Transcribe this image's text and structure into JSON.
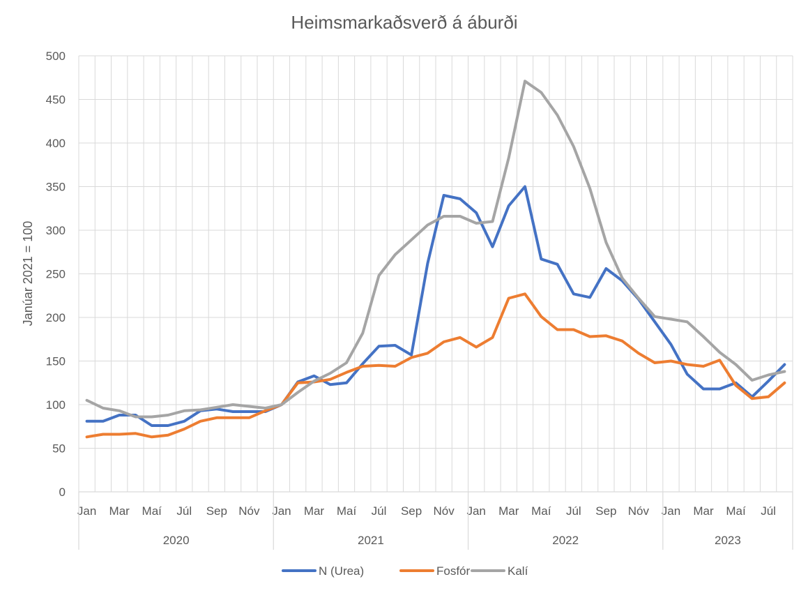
{
  "chart_data": {
    "type": "line",
    "title": "Heimsmarkaðsverð á áburði",
    "xlabel": "",
    "ylabel": "Janúar 2021 = 100",
    "ylim": [
      0,
      500
    ],
    "yticks": [
      0,
      50,
      100,
      150,
      200,
      250,
      300,
      350,
      400,
      450,
      500
    ],
    "grid": true,
    "legend_position": "bottom",
    "x_month_labels": [
      "Jan",
      "",
      "Mar",
      "",
      "Maí",
      "",
      "Júl",
      "",
      "Sep",
      "",
      "Nóv",
      "",
      "Jan",
      "",
      "Mar",
      "",
      "Maí",
      "",
      "Júl",
      "",
      "Sep",
      "",
      "Nóv",
      "",
      "Jan",
      "",
      "Mar",
      "",
      "Maí",
      "",
      "Júl",
      "",
      "Sep",
      "",
      "Nóv",
      "",
      "Jan",
      "",
      "Mar",
      "",
      "Maí",
      "",
      "Júl",
      ""
    ],
    "year_groups": [
      {
        "label": "2020",
        "months": 12
      },
      {
        "label": "2021",
        "months": 12
      },
      {
        "label": "2022",
        "months": 12
      },
      {
        "label": "2023",
        "months": 8
      }
    ],
    "series": [
      {
        "name": "N (Urea)",
        "color": "#4472C4",
        "values": [
          81,
          81,
          88,
          88,
          76,
          76,
          81,
          93,
          95,
          92,
          92,
          92,
          100,
          126,
          133,
          123,
          125,
          147,
          167,
          168,
          157,
          262,
          340,
          336,
          320,
          281,
          328,
          350,
          267,
          261,
          227,
          223,
          256,
          242,
          221,
          195,
          169,
          135,
          118,
          118,
          125,
          109,
          127,
          146
        ]
      },
      {
        "name": "Fosfór",
        "color": "#ED7D31",
        "values": [
          63,
          66,
          66,
          67,
          63,
          65,
          72,
          81,
          85,
          85,
          85,
          93,
          100,
          125,
          126,
          129,
          137,
          144,
          145,
          144,
          154,
          159,
          172,
          177,
          166,
          177,
          222,
          227,
          201,
          186,
          186,
          178,
          179,
          173,
          159,
          148,
          150,
          146,
          144,
          151,
          122,
          107,
          109,
          125
        ]
      },
      {
        "name": "Kalí",
        "color": "#A5A5A5",
        "values": [
          105,
          96,
          93,
          86,
          86,
          88,
          93,
          94,
          97,
          100,
          98,
          96,
          100,
          114,
          127,
          136,
          148,
          182,
          248,
          272,
          289,
          306,
          316,
          316,
          308,
          310,
          383,
          471,
          458,
          432,
          396,
          348,
          286,
          245,
          222,
          201,
          198,
          195,
          178,
          160,
          146,
          128,
          134,
          138
        ]
      }
    ]
  }
}
